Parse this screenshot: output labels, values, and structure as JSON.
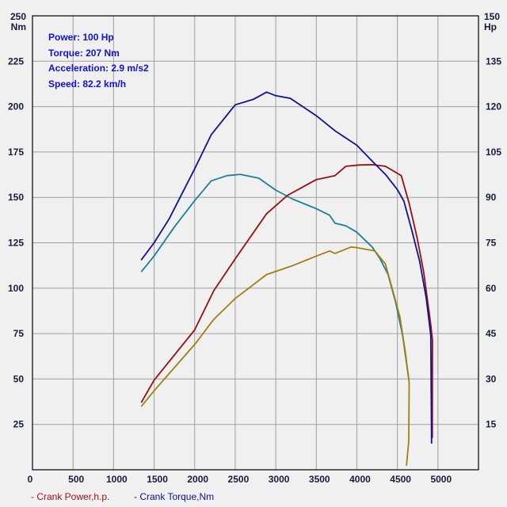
{
  "info": {
    "power": "Power: 100 Hp",
    "torque": "Torque: 207 Nm",
    "acceleration": "Acceleration: 2.9 m/s2",
    "speed": "Speed: 82.2 km/h"
  },
  "legend": {
    "power": "- Crank Power,h.p.",
    "torque": "- Crank Torque,Nm"
  },
  "chart_data": {
    "type": "line",
    "grid": true,
    "legend_placement": "bottom-left",
    "x_axis": {
      "range": [
        0,
        5500
      ],
      "ticks": [
        0,
        500,
        1000,
        1500,
        2000,
        2500,
        3000,
        3500,
        4000,
        4500,
        5000
      ]
    },
    "y_left": {
      "unit": "Nm",
      "range": [
        0,
        250
      ],
      "ticks": [
        25,
        50,
        75,
        100,
        125,
        150,
        175,
        200,
        225,
        250
      ]
    },
    "y_right": {
      "unit": "Hp",
      "range": [
        0,
        150
      ],
      "ticks": [
        15,
        30,
        45,
        60,
        75,
        90,
        105,
        120,
        135,
        150
      ]
    },
    "series": [
      {
        "name": "Crank Torque,Nm",
        "axis": "left",
        "color": "#10109a",
        "x": [
          1340,
          1500,
          1683,
          2000,
          2204,
          2500,
          2724,
          2887,
          3000,
          3180,
          3500,
          3731,
          4000,
          4189,
          4352,
          4500,
          4580,
          4677,
          4775,
          4856,
          4912,
          4922
        ],
        "y": [
          115.5,
          125,
          138,
          165.7,
          184.5,
          201,
          204,
          208,
          206,
          204.6,
          195,
          186.7,
          178.7,
          170,
          162.7,
          154.3,
          148,
          132,
          114.7,
          94.4,
          74,
          14.4
        ]
      },
      {
        "name": "Crank Power,h.p.",
        "axis": "right",
        "color": "#9a1010",
        "x": [
          1341,
          1500,
          2000,
          2236,
          2500,
          2887,
          3147,
          3500,
          3731,
          3864,
          4026,
          4189,
          4352,
          4548,
          4645,
          4743,
          4824,
          4912,
          4932,
          4930
        ],
        "y": [
          22.2,
          29.6,
          46.2,
          59.2,
          69.7,
          84.6,
          90.7,
          95.9,
          97.2,
          100.3,
          100.7,
          100.8,
          100.3,
          97.2,
          88,
          76.7,
          65.4,
          47.9,
          42.7,
          10.5
        ]
      },
      {
        "axis": "left",
        "color": "#1a809a",
        "x": [
          1341,
          1500,
          1748,
          2000,
          2204,
          2399,
          2562,
          2790,
          3000,
          3213,
          3500,
          3664,
          3731,
          3864,
          4000,
          4189,
          4287,
          4385,
          4482,
          4564,
          4629,
          4640
        ],
        "y": [
          109,
          117.7,
          133.6,
          148.2,
          159.1,
          162,
          162.7,
          160.6,
          154,
          149,
          143.8,
          140.2,
          135.8,
          134.4,
          130.8,
          122.7,
          116.2,
          107.5,
          91.5,
          74,
          53.7,
          50
        ]
      },
      {
        "axis": "right",
        "color": "#a08010",
        "x": [
          1341,
          1500,
          2000,
          2236,
          2500,
          2887,
          3213,
          3500,
          3664,
          3731,
          3929,
          4000,
          4222,
          4352,
          4434,
          4531,
          4596,
          4645,
          4640,
          4612
        ],
        "y": [
          20.9,
          26.1,
          41.4,
          49.7,
          56.6,
          64.5,
          67.5,
          70.6,
          72.3,
          71.5,
          73.6,
          73.4,
          72.3,
          68,
          60.1,
          50.5,
          39.2,
          28.7,
          9.5,
          1.3
        ]
      }
    ]
  }
}
